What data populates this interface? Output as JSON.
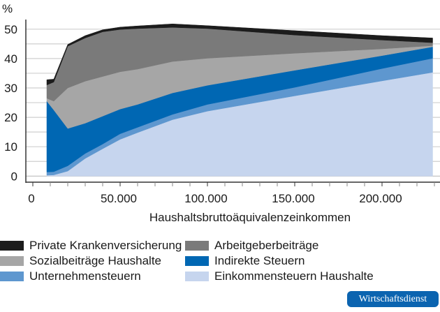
{
  "chart_data": {
    "type": "area",
    "stacked": true,
    "title": "",
    "ylabel": "%",
    "xlabel": "Haushaltsbruttoäquivalenzeinkommen",
    "xlim": [
      0,
      230000
    ],
    "ylim": [
      0,
      52
    ],
    "grid": true,
    "legend_placement": "bottom",
    "x_ticks": [
      0,
      50000,
      100000,
      150000,
      200000
    ],
    "x_tick_labels": [
      "0",
      "50.000",
      "100.000",
      "150.000",
      "200.000"
    ],
    "y_ticks": [
      0,
      10,
      20,
      30,
      40,
      50
    ],
    "y_tick_labels": [
      "0",
      "10",
      "20",
      "30",
      "40",
      "50"
    ],
    "x": [
      8000,
      12000,
      20000,
      30000,
      40000,
      50000,
      60000,
      80000,
      100000,
      150000,
      200000,
      229000
    ],
    "series": [
      {
        "name": "Einkommensteuern Haushalte",
        "color": "#c6d5ee",
        "values": [
          0.3,
          0.4,
          1.7,
          6.0,
          9.3,
          12.5,
          14.8,
          19.2,
          22.1,
          27.3,
          32.4,
          35.3
        ]
      },
      {
        "name": "Unternehmensteuern",
        "color": "#5e97cf",
        "values": [
          1.1,
          1.1,
          1.8,
          1.7,
          1.6,
          1.9,
          1.8,
          1.8,
          2.3,
          2.9,
          4.2,
          4.8
        ]
      },
      {
        "name": "Indirekte Steuern",
        "color": "#0067b3",
        "values": [
          24.1,
          21.0,
          12.7,
          10.3,
          9.5,
          8.4,
          7.8,
          7.3,
          6.5,
          5.8,
          4.4,
          3.9
        ]
      },
      {
        "name": "Sozialbeiträge Haushalte",
        "color": "#a6a6a6",
        "values": [
          1.0,
          3.0,
          13.8,
          14.3,
          13.5,
          12.7,
          12.0,
          10.7,
          9.2,
          5.8,
          2.3,
          0.4
        ]
      },
      {
        "name": "Arbeitgeberbeiträge",
        "color": "#7a7a7a",
        "values": [
          4.5,
          6.5,
          14.2,
          14.7,
          15.2,
          14.4,
          13.8,
          11.6,
          10.1,
          6.2,
          3.0,
          1.0
        ]
      },
      {
        "name": "Private Krankenversicherung",
        "color": "#1c1c1c",
        "values": [
          1.8,
          1.0,
          0.6,
          0.8,
          0.7,
          0.8,
          0.9,
          1.2,
          1.0,
          1.5,
          1.5,
          1.6
        ]
      }
    ]
  },
  "legend": {
    "items": [
      "Private Krankenversicherung",
      "Arbeitgeberbeiträge",
      "Sozialbeiträge Haushalte",
      "Indirekte Steuern",
      "Unternehmensteuern",
      "Einkommensteuern Haushalte"
    ]
  },
  "badge": {
    "label": "Wirtschaftsdienst",
    "color": "#0b64b0"
  }
}
